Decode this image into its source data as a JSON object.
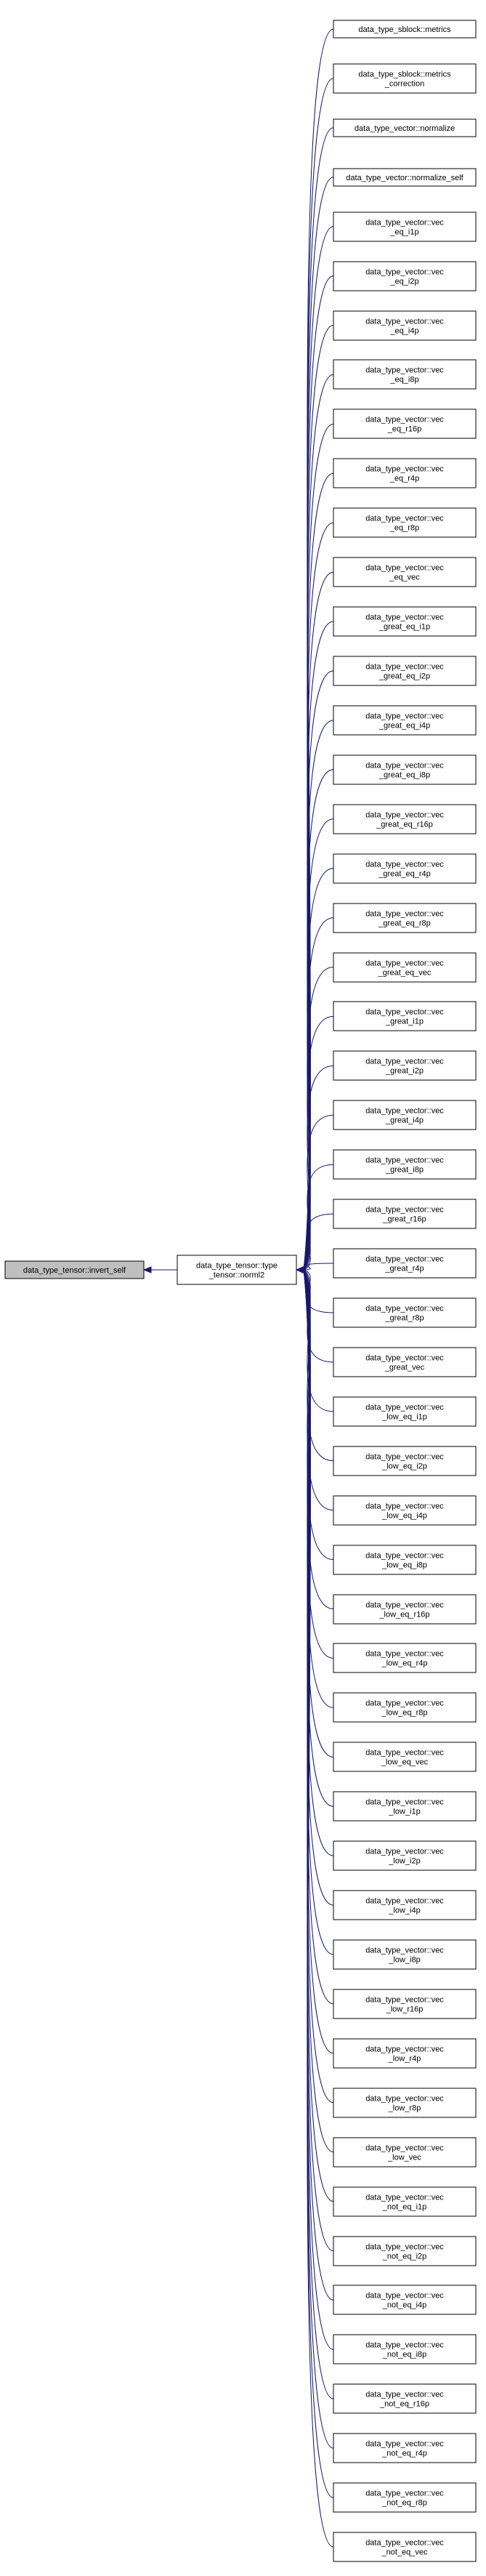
{
  "graph": {
    "root": {
      "lines": [
        "data_type_tensor::invert_self"
      ]
    },
    "center": {
      "lines": [
        "data_type_tensor::type",
        "_tensor::norml2"
      ]
    },
    "callers": [
      {
        "lines": [
          "data_type_sblock::metrics"
        ]
      },
      {
        "lines": [
          "data_type_sblock::metrics",
          "_correction"
        ]
      },
      {
        "lines": [
          "data_type_vector::normalize"
        ]
      },
      {
        "lines": [
          "data_type_vector::normalize_self"
        ]
      },
      {
        "lines": [
          "data_type_vector::vec",
          "_eq_i1p"
        ]
      },
      {
        "lines": [
          "data_type_vector::vec",
          "_eq_i2p"
        ]
      },
      {
        "lines": [
          "data_type_vector::vec",
          "_eq_i4p"
        ]
      },
      {
        "lines": [
          "data_type_vector::vec",
          "_eq_i8p"
        ]
      },
      {
        "lines": [
          "data_type_vector::vec",
          "_eq_r16p"
        ]
      },
      {
        "lines": [
          "data_type_vector::vec",
          "_eq_r4p"
        ]
      },
      {
        "lines": [
          "data_type_vector::vec",
          "_eq_r8p"
        ]
      },
      {
        "lines": [
          "data_type_vector::vec",
          "_eq_vec"
        ]
      },
      {
        "lines": [
          "data_type_vector::vec",
          "_great_eq_i1p"
        ]
      },
      {
        "lines": [
          "data_type_vector::vec",
          "_great_eq_i2p"
        ]
      },
      {
        "lines": [
          "data_type_vector::vec",
          "_great_eq_i4p"
        ]
      },
      {
        "lines": [
          "data_type_vector::vec",
          "_great_eq_i8p"
        ]
      },
      {
        "lines": [
          "data_type_vector::vec",
          "_great_eq_r16p"
        ]
      },
      {
        "lines": [
          "data_type_vector::vec",
          "_great_eq_r4p"
        ]
      },
      {
        "lines": [
          "data_type_vector::vec",
          "_great_eq_r8p"
        ]
      },
      {
        "lines": [
          "data_type_vector::vec",
          "_great_eq_vec"
        ]
      },
      {
        "lines": [
          "data_type_vector::vec",
          "_great_i1p"
        ]
      },
      {
        "lines": [
          "data_type_vector::vec",
          "_great_i2p"
        ]
      },
      {
        "lines": [
          "data_type_vector::vec",
          "_great_i4p"
        ]
      },
      {
        "lines": [
          "data_type_vector::vec",
          "_great_i8p"
        ]
      },
      {
        "lines": [
          "data_type_vector::vec",
          "_great_r16p"
        ]
      },
      {
        "lines": [
          "data_type_vector::vec",
          "_great_r4p"
        ]
      },
      {
        "lines": [
          "data_type_vector::vec",
          "_great_r8p"
        ]
      },
      {
        "lines": [
          "data_type_vector::vec",
          "_great_vec"
        ]
      },
      {
        "lines": [
          "data_type_vector::vec",
          "_low_eq_i1p"
        ]
      },
      {
        "lines": [
          "data_type_vector::vec",
          "_low_eq_i2p"
        ]
      },
      {
        "lines": [
          "data_type_vector::vec",
          "_low_eq_i4p"
        ]
      },
      {
        "lines": [
          "data_type_vector::vec",
          "_low_eq_i8p"
        ]
      },
      {
        "lines": [
          "data_type_vector::vec",
          "_low_eq_r16p"
        ]
      },
      {
        "lines": [
          "data_type_vector::vec",
          "_low_eq_r4p"
        ]
      },
      {
        "lines": [
          "data_type_vector::vec",
          "_low_eq_r8p"
        ]
      },
      {
        "lines": [
          "data_type_vector::vec",
          "_low_eq_vec"
        ]
      },
      {
        "lines": [
          "data_type_vector::vec",
          "_low_i1p"
        ]
      },
      {
        "lines": [
          "data_type_vector::vec",
          "_low_i2p"
        ]
      },
      {
        "lines": [
          "data_type_vector::vec",
          "_low_i4p"
        ]
      },
      {
        "lines": [
          "data_type_vector::vec",
          "_low_i8p"
        ]
      },
      {
        "lines": [
          "data_type_vector::vec",
          "_low_r16p"
        ]
      },
      {
        "lines": [
          "data_type_vector::vec",
          "_low_r4p"
        ]
      },
      {
        "lines": [
          "data_type_vector::vec",
          "_low_r8p"
        ]
      },
      {
        "lines": [
          "data_type_vector::vec",
          "_low_vec"
        ]
      },
      {
        "lines": [
          "data_type_vector::vec",
          "_not_eq_i1p"
        ]
      },
      {
        "lines": [
          "data_type_vector::vec",
          "_not_eq_i2p"
        ]
      },
      {
        "lines": [
          "data_type_vector::vec",
          "_not_eq_i4p"
        ]
      },
      {
        "lines": [
          "data_type_vector::vec",
          "_not_eq_i8p"
        ]
      },
      {
        "lines": [
          "data_type_vector::vec",
          "_not_eq_r16p"
        ]
      },
      {
        "lines": [
          "data_type_vector::vec",
          "_not_eq_r4p"
        ]
      },
      {
        "lines": [
          "data_type_vector::vec",
          "_not_eq_r8p"
        ]
      },
      {
        "lines": [
          "data_type_vector::vec",
          "_not_eq_vec"
        ]
      }
    ],
    "colors": {
      "edge": "#191970",
      "node_border": "#000000",
      "node_fill": "#ffffff",
      "selected_fill": "#bfbfbf"
    }
  }
}
